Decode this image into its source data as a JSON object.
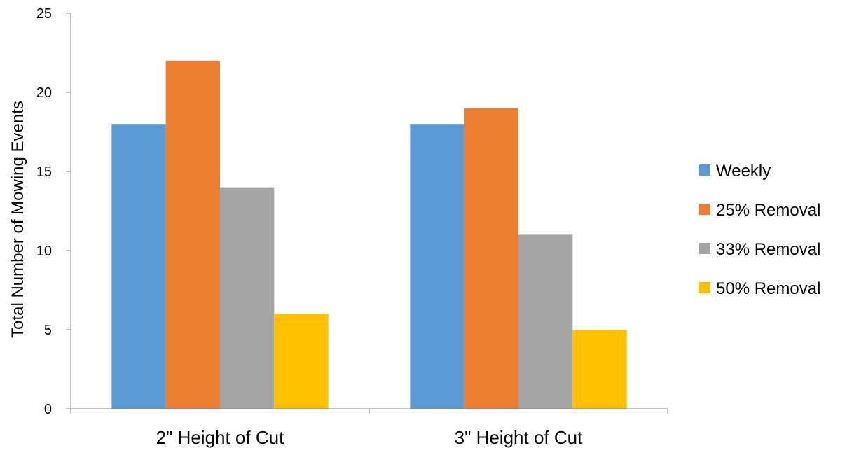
{
  "chart_data": {
    "type": "bar",
    "title": "",
    "xlabel": "",
    "ylabel": "Total Number of Mowing Events",
    "ylim": [
      0,
      25
    ],
    "yticks": [
      0,
      5,
      10,
      15,
      20,
      25
    ],
    "grid": false,
    "legend_position": "right",
    "categories": [
      "2\" Height of Cut",
      "3\" Height of Cut"
    ],
    "series": [
      {
        "name": "Weekly",
        "color": "#5B9BD5",
        "values": [
          18,
          18
        ]
      },
      {
        "name": "25% Removal",
        "color": "#ED7D31",
        "values": [
          22,
          19
        ]
      },
      {
        "name": "33% Removal",
        "color": "#A5A5A5",
        "values": [
          14,
          11
        ]
      },
      {
        "name": "50% Removal",
        "color": "#FFC000",
        "values": [
          6,
          5
        ]
      }
    ]
  }
}
